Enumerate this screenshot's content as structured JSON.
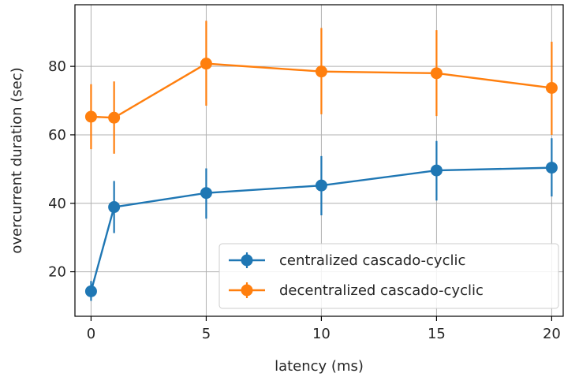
{
  "chart_data": {
    "type": "line",
    "xlabel": "latency (ms)",
    "ylabel": "overcurrent duration (sec)",
    "x": [
      0,
      1,
      5,
      10,
      15,
      20
    ],
    "xlim": [
      -0.7,
      20.5
    ],
    "ylim": [
      7,
      98
    ],
    "xticks": [
      0,
      5,
      10,
      15,
      20
    ],
    "yticks": [
      20,
      40,
      60,
      80
    ],
    "grid": true,
    "legend_position": "lower right",
    "series": [
      {
        "name": "centralized cascado-cyclic",
        "color": "#1f77b4",
        "values": [
          14.3,
          38.9,
          43.0,
          45.2,
          49.6,
          50.4
        ],
        "err_low": [
          11.5,
          31.3,
          35.5,
          36.5,
          40.8,
          42.0
        ],
        "err_high": [
          17.3,
          46.5,
          50.2,
          53.8,
          58.2,
          59.0
        ]
      },
      {
        "name": "decentralized cascado-cyclic",
        "color": "#ff7f0e",
        "values": [
          65.3,
          65.0,
          80.8,
          78.5,
          78.0,
          73.7
        ],
        "err_low": [
          55.8,
          54.5,
          68.5,
          66.0,
          65.5,
          60.0
        ],
        "err_high": [
          74.8,
          75.6,
          93.3,
          91.2,
          90.6,
          87.2
        ]
      }
    ]
  }
}
